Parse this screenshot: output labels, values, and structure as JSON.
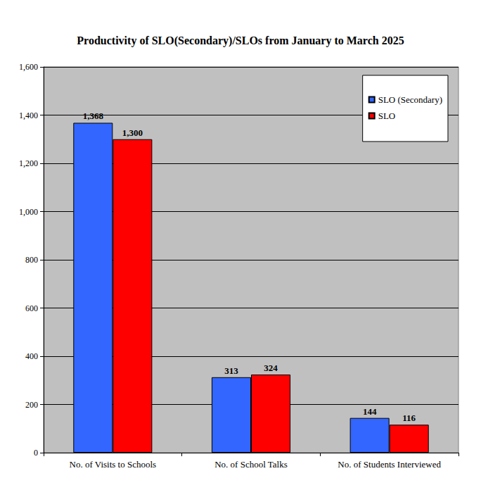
{
  "chart_data": {
    "type": "bar",
    "title": "Productivity of SLO(Secondary)/SLOs from January to March 2025",
    "categories": [
      "No. of Visits to Schools",
      "No. of School Talks",
      "No. of Students Interviewed"
    ],
    "series": [
      {
        "name": "SLO (Secondary)",
        "color": "#3366ff",
        "values": [
          1368,
          313,
          144
        ],
        "value_labels": [
          "1,368",
          "313",
          "144"
        ]
      },
      {
        "name": "SLO",
        "color": "#ff0000",
        "values": [
          1300,
          324,
          116
        ],
        "value_labels": [
          "1,300",
          "324",
          "116"
        ]
      }
    ],
    "ylim": [
      0,
      1600
    ],
    "yticks": [
      0,
      200,
      400,
      600,
      800,
      {
        "value": 1000,
        "label": "1,000"
      },
      {
        "value": 1200,
        "label": "1,200"
      },
      {
        "value": 1400,
        "label": "1,400"
      },
      {
        "value": 1600,
        "label": "1,600"
      }
    ],
    "grid": true,
    "legend": "upper right",
    "data_labels": true
  }
}
